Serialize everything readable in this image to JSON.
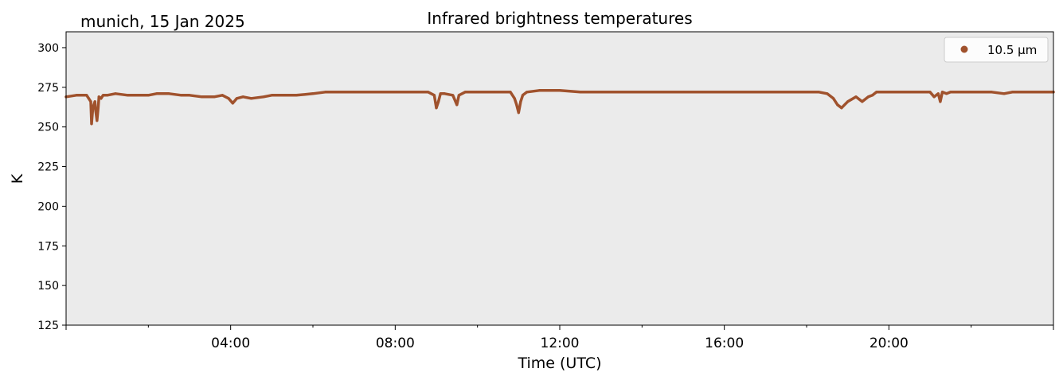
{
  "location_label": "munich, 15 Jan 2025",
  "chart_data": {
    "type": "line",
    "title": "Infrared brightness temperatures",
    "xlabel": "Time (UTC)",
    "ylabel": "K",
    "xlim": [
      "00:00",
      "24:00"
    ],
    "ylim": [
      125,
      310
    ],
    "x_tick_labels": [
      "04:00",
      "08:00",
      "12:00",
      "16:00",
      "20:00"
    ],
    "y_ticks": [
      125,
      150,
      175,
      200,
      225,
      250,
      275,
      300
    ],
    "grid": false,
    "legend_position": "top-right",
    "series": [
      {
        "name": "10.5 µm",
        "color": "#a0522d",
        "marker": "point",
        "x_hours": [
          0.0,
          0.25,
          0.5,
          0.55,
          0.6,
          0.62,
          0.65,
          0.7,
          0.72,
          0.75,
          0.78,
          0.8,
          0.85,
          0.9,
          1.0,
          1.2,
          1.5,
          1.8,
          2.0,
          2.2,
          2.5,
          2.8,
          3.0,
          3.3,
          3.6,
          3.8,
          3.95,
          4.05,
          4.15,
          4.3,
          4.5,
          4.8,
          5.0,
          5.3,
          5.6,
          6.0,
          6.3,
          6.6,
          7.0,
          7.5,
          8.0,
          8.5,
          8.8,
          8.95,
          9.0,
          9.05,
          9.1,
          9.2,
          9.4,
          9.5,
          9.55,
          9.7,
          10.0,
          10.4,
          10.8,
          10.9,
          10.95,
          11.0,
          11.05,
          11.1,
          11.2,
          11.5,
          12.0,
          12.5,
          13.0,
          13.5,
          14.0,
          14.5,
          15.0,
          15.5,
          16.0,
          16.5,
          17.0,
          17.5,
          18.0,
          18.3,
          18.5,
          18.65,
          18.75,
          18.85,
          19.0,
          19.2,
          19.35,
          19.5,
          19.6,
          19.7,
          20.0,
          20.5,
          21.0,
          21.1,
          21.2,
          21.25,
          21.3,
          21.4,
          21.5,
          21.8,
          22.0,
          22.5,
          22.8,
          23.0,
          23.2,
          23.5,
          23.8,
          24.0
        ],
        "y": [
          269,
          270,
          270,
          268,
          266,
          252,
          262,
          266,
          260,
          254,
          262,
          269,
          268,
          270,
          270,
          271,
          270,
          270,
          270,
          271,
          271,
          270,
          270,
          269,
          269,
          270,
          268,
          265,
          268,
          269,
          268,
          269,
          270,
          270,
          270,
          271,
          272,
          272,
          272,
          272,
          272,
          272,
          272,
          270,
          262,
          266,
          271,
          271,
          270,
          264,
          270,
          272,
          272,
          272,
          272,
          268,
          264,
          259,
          266,
          270,
          272,
          273,
          273,
          272,
          272,
          272,
          272,
          272,
          272,
          272,
          272,
          272,
          272,
          272,
          272,
          272,
          271,
          268,
          264,
          262,
          266,
          269,
          266,
          269,
          270,
          272,
          272,
          272,
          272,
          269,
          271,
          266,
          272,
          271,
          272,
          272,
          272,
          272,
          271,
          272,
          272,
          272,
          272,
          272
        ]
      }
    ]
  }
}
